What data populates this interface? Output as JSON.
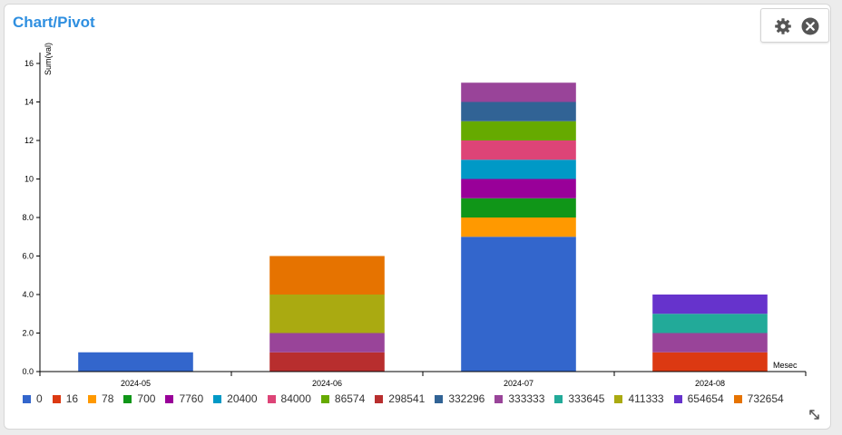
{
  "header": {
    "title": "Chart/Pivot"
  },
  "toolbar": {
    "settings_icon": "gear-icon",
    "close_icon": "close-circle-icon"
  },
  "resize_icon": "resize-diagonal-icon",
  "chart_data": {
    "type": "bar",
    "stacked": true,
    "xlabel": "Mesec",
    "ylabel": "Sum(val)",
    "ylim": [
      0,
      16
    ],
    "yticks": [
      "0.0",
      "2.0",
      "4.0",
      "6.0",
      "8.0",
      "10",
      "12",
      "14",
      "16"
    ],
    "grid": false,
    "legend_position": "bottom",
    "categories": [
      "2024-05",
      "2024-06",
      "2024-07",
      "2024-08"
    ],
    "series": [
      {
        "name": "0",
        "color": "#3366cc",
        "values": [
          1,
          0,
          7,
          0
        ]
      },
      {
        "name": "16",
        "color": "#dc3912",
        "values": [
          0,
          0,
          0,
          1
        ]
      },
      {
        "name": "78",
        "color": "#ff9900",
        "values": [
          0,
          0,
          1,
          0
        ]
      },
      {
        "name": "700",
        "color": "#109618",
        "values": [
          0,
          0,
          1,
          0
        ]
      },
      {
        "name": "7760",
        "color": "#990099",
        "values": [
          0,
          0,
          1,
          0
        ]
      },
      {
        "name": "20400",
        "color": "#0099c6",
        "values": [
          0,
          0,
          1,
          0
        ]
      },
      {
        "name": "84000",
        "color": "#dd4477",
        "values": [
          0,
          0,
          1,
          0
        ]
      },
      {
        "name": "86574",
        "color": "#66aa00",
        "values": [
          0,
          0,
          1,
          0
        ]
      },
      {
        "name": "298541",
        "color": "#b82e2e",
        "values": [
          0,
          1,
          0,
          0
        ]
      },
      {
        "name": "332296",
        "color": "#316395",
        "values": [
          0,
          0,
          1,
          0
        ]
      },
      {
        "name": "333333",
        "color": "#994499",
        "values": [
          0,
          1,
          1,
          1
        ]
      },
      {
        "name": "333645",
        "color": "#22aa99",
        "values": [
          0,
          0,
          0,
          1
        ]
      },
      {
        "name": "411333",
        "color": "#aaaa11",
        "values": [
          0,
          2,
          0,
          0
        ]
      },
      {
        "name": "654654",
        "color": "#6633cc",
        "values": [
          0,
          0,
          0,
          1
        ]
      },
      {
        "name": "732654",
        "color": "#e67300",
        "values": [
          0,
          2,
          0,
          0
        ]
      }
    ]
  }
}
